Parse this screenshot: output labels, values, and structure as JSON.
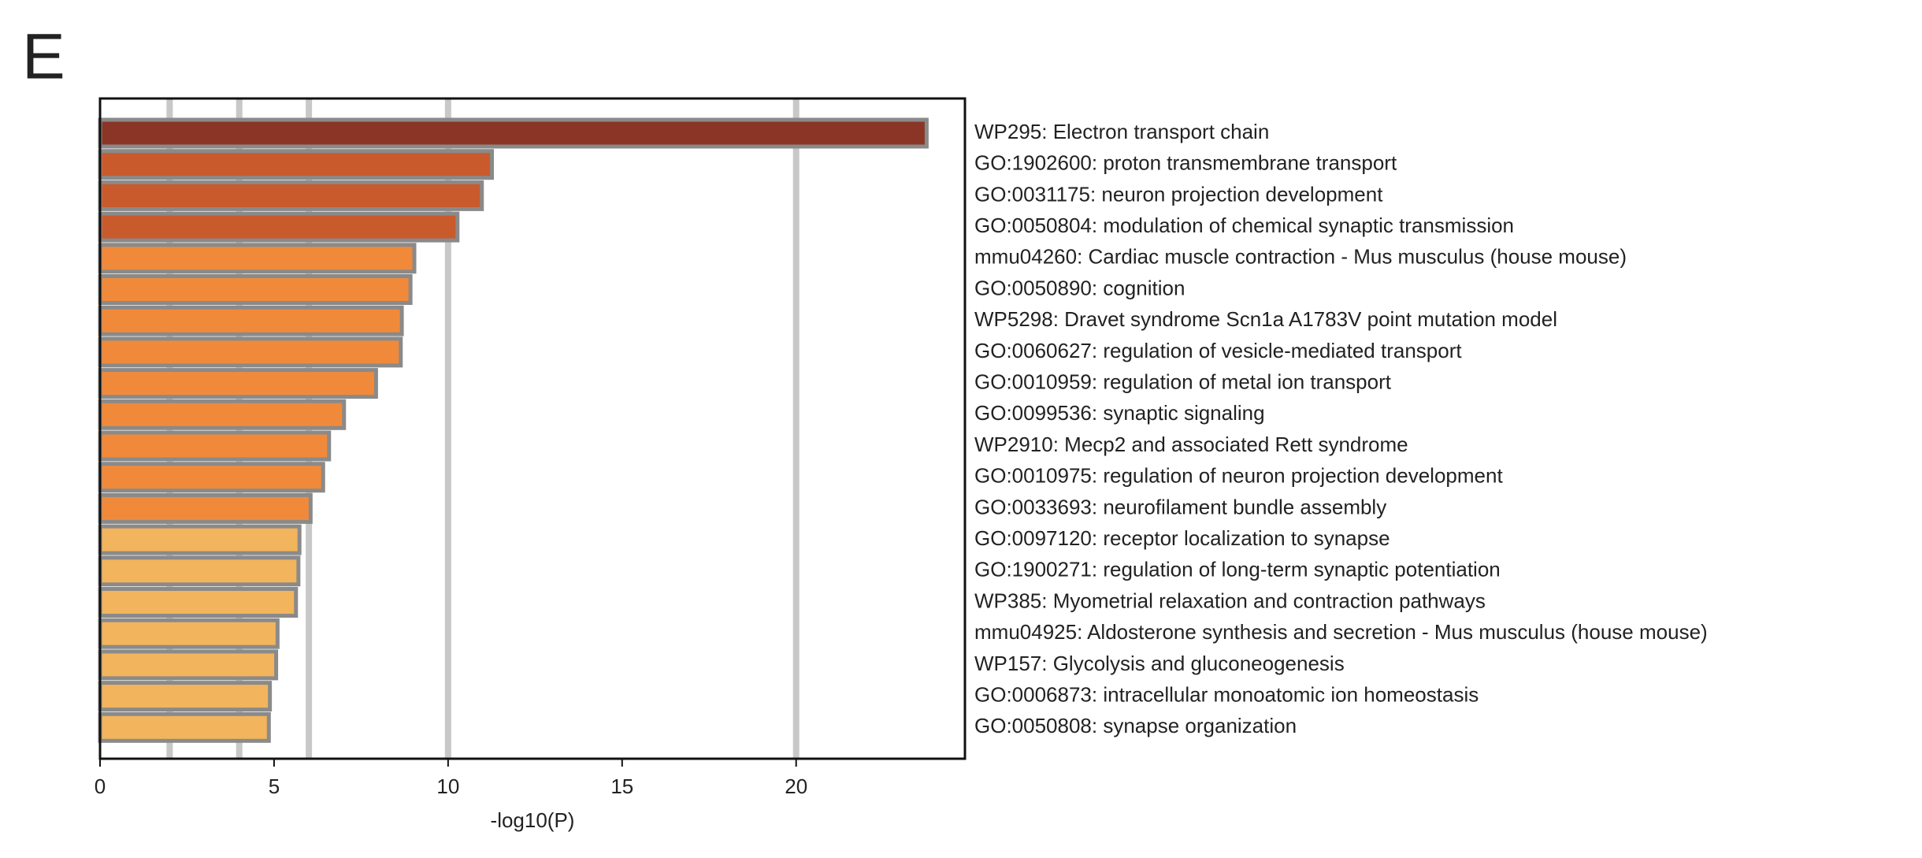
{
  "chart_data": {
    "type": "hbar",
    "panel_label": "E",
    "xlabel": "-log10(P)",
    "categories": [
      "WP295: Electron transport chain",
      "GO:1902600: proton transmembrane transport",
      "GO:0031175: neuron projection development",
      "GO:0050804: modulation of chemical synaptic transmission",
      "mmu04260: Cardiac muscle contraction - Mus musculus (house mouse)",
      "GO:0050890: cognition",
      "WP5298: Dravet syndrome Scn1a A1783V point mutation model",
      "GO:0060627: regulation of vesicle-mediated transport",
      "GO:0010959: regulation of metal ion transport",
      "GO:0099536: synaptic signaling",
      "WP2910: Mecp2 and associated Rett syndrome",
      "GO:0010975: regulation of neuron projection development",
      "GO:0033693: neurofilament bundle assembly",
      "GO:0097120: receptor localization to synapse",
      "GO:1900271: regulation of long-term synaptic potentiation",
      "WP385: Myometrial relaxation and contraction pathways",
      "mmu04925: Aldosterone synthesis and secretion - Mus musculus (house mouse)",
      "WP157: Glycolysis and gluconeogenesis",
      "GO:0006873: intracellular monoatomic ion homeostasis",
      "GO:0050808: synapse organization"
    ],
    "values": [
      23.75,
      11.26,
      10.97,
      10.27,
      9.03,
      8.92,
      8.67,
      8.64,
      7.93,
      7.01,
      6.58,
      6.41,
      6.05,
      5.73,
      5.7,
      5.63,
      5.1,
      5.06,
      4.88,
      4.85
    ],
    "colors": [
      "#8b3526",
      "#c95a2c",
      "#c95a2c",
      "#c95a2c",
      "#f08a3a",
      "#f08a3a",
      "#f08a3a",
      "#f08a3a",
      "#f08a3a",
      "#f08a3a",
      "#f08a3a",
      "#f08a3a",
      "#f08a3a",
      "#f2b45c",
      "#f2b45c",
      "#f2b45c",
      "#f2b45c",
      "#f2b45c",
      "#f2b45c",
      "#f2b45c"
    ],
    "border_color": "#8a8a8a",
    "xlim": [
      0,
      24.85
    ],
    "xticks": [
      0,
      5,
      10,
      15,
      20
    ],
    "grid_lines": [
      2,
      4,
      6,
      10,
      20
    ],
    "grid_color": "#c8c8c8"
  }
}
